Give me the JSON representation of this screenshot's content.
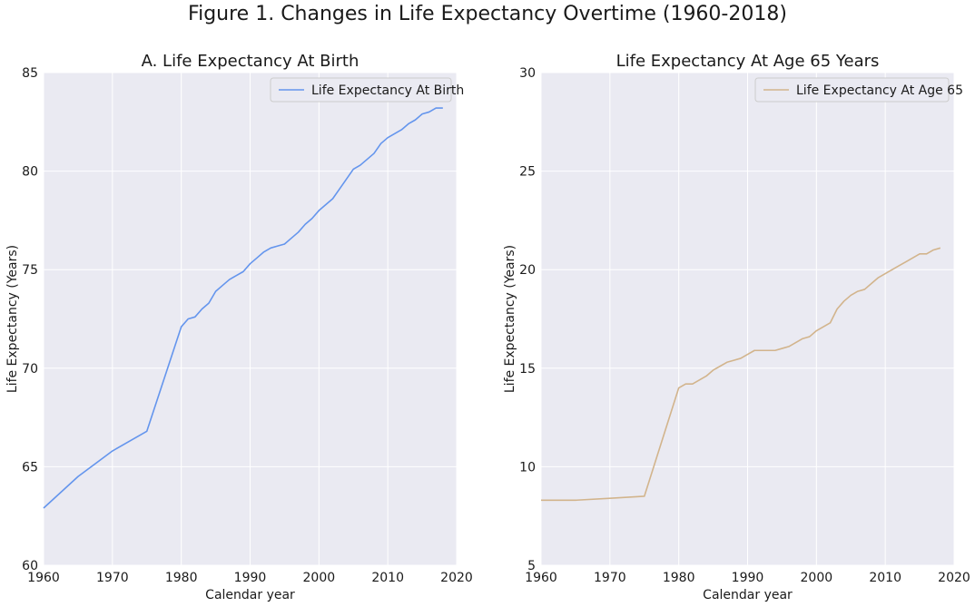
{
  "figure": {
    "title": "Figure 1. Changes in Life Expectancy Overtime (1960-2018)"
  },
  "chart_data": [
    {
      "type": "line",
      "title": "A. Life Expectancy At Birth",
      "xlabel": "Calendar year",
      "ylabel": "Life Expectancy (Years)",
      "xlim": [
        1960,
        2020
      ],
      "ylim": [
        60,
        85
      ],
      "xticks": [
        1960,
        1970,
        1980,
        1990,
        2000,
        2010,
        2020
      ],
      "yticks": [
        60,
        65,
        70,
        75,
        80,
        85
      ],
      "grid": true,
      "legend_position": "upper-right",
      "series": [
        {
          "name": "Life Expectancy At Birth",
          "color": "#6495ed",
          "x": [
            1960,
            1965,
            1970,
            1975,
            1980,
            1981,
            1982,
            1983,
            1984,
            1985,
            1986,
            1987,
            1988,
            1989,
            1990,
            1991,
            1992,
            1993,
            1994,
            1995,
            1996,
            1997,
            1998,
            1999,
            2000,
            2001,
            2002,
            2003,
            2004,
            2005,
            2006,
            2007,
            2008,
            2009,
            2010,
            2011,
            2012,
            2013,
            2014,
            2015,
            2016,
            2017,
            2018
          ],
          "y": [
            62.9,
            64.5,
            65.8,
            66.8,
            72.1,
            72.5,
            72.6,
            73.0,
            73.3,
            73.9,
            74.2,
            74.5,
            74.7,
            74.9,
            75.3,
            75.6,
            75.9,
            76.1,
            76.2,
            76.3,
            76.6,
            76.9,
            77.3,
            77.6,
            78.0,
            78.3,
            78.6,
            79.1,
            79.6,
            80.1,
            80.3,
            80.6,
            80.9,
            81.4,
            81.7,
            81.9,
            82.1,
            82.4,
            82.6,
            82.9,
            83.0,
            83.2,
            83.2
          ]
        }
      ]
    },
    {
      "type": "line",
      "title": "Life Expectancy At Age 65 Years",
      "xlabel": "Calendar year",
      "ylabel": "Life Expectancy (Years)",
      "xlim": [
        1960,
        2020
      ],
      "ylim": [
        5,
        30
      ],
      "xticks": [
        1960,
        1970,
        1980,
        1990,
        2000,
        2010,
        2020
      ],
      "yticks": [
        5,
        10,
        15,
        20,
        25,
        30
      ],
      "grid": true,
      "legend_position": "upper-right",
      "series": [
        {
          "name": "Life Expectancy At Age 65",
          "color": "#d2b48c",
          "x": [
            1960,
            1965,
            1970,
            1975,
            1980,
            1981,
            1982,
            1983,
            1984,
            1985,
            1986,
            1987,
            1988,
            1989,
            1990,
            1991,
            1992,
            1993,
            1994,
            1995,
            1996,
            1997,
            1998,
            1999,
            2000,
            2001,
            2002,
            2003,
            2004,
            2005,
            2006,
            2007,
            2008,
            2009,
            2010,
            2011,
            2012,
            2013,
            2014,
            2015,
            2016,
            2017,
            2018
          ],
          "y": [
            8.3,
            8.3,
            8.4,
            8.5,
            14.0,
            14.2,
            14.2,
            14.4,
            14.6,
            14.9,
            15.1,
            15.3,
            15.4,
            15.5,
            15.7,
            15.9,
            15.9,
            15.9,
            15.9,
            16.0,
            16.1,
            16.3,
            16.5,
            16.6,
            16.9,
            17.1,
            17.3,
            18.0,
            18.4,
            18.7,
            18.9,
            19.0,
            19.3,
            19.6,
            19.8,
            20.0,
            20.2,
            20.4,
            20.6,
            20.8,
            20.8,
            21.0,
            21.1
          ]
        }
      ]
    }
  ]
}
